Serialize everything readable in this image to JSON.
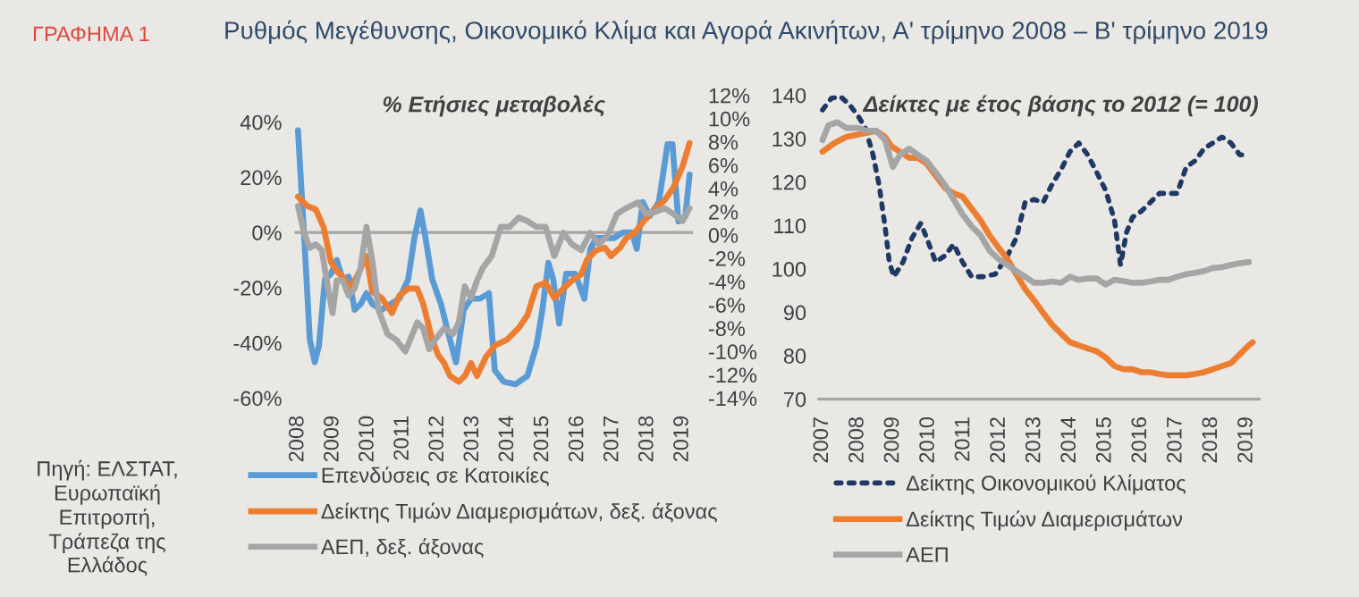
{
  "chart_data": [
    {
      "type": "line",
      "title": "% Ετήσιες μεταβολές",
      "annotations": [
        "ΓΡΑΦΗΜΑ 1",
        "Ρυθμός Μεγέθυνσης, Οικονομικό Κλίμα και Αγορά Ακινήτων, Α' τρίμηνο 2008 – Β' τρίμηνο 2019",
        "Πηγή: ΕΛΣΤΑΤ,\nΕυρωπαϊκή\nΕπιτροπή,\nΤράπεζα της\nΕλλάδος"
      ],
      "xlim": [
        2007.9,
        2019.3
      ],
      "xticks": [
        2008,
        2009,
        2010,
        2011,
        2012,
        2013,
        2014,
        2015,
        2016,
        2017,
        2018,
        2019
      ],
      "ylim": [
        -60,
        40
      ],
      "yticks": [
        {
          "value": -60,
          "label": "-60%"
        },
        {
          "value": -40,
          "label": "-40%"
        },
        {
          "value": -20,
          "label": "-20%"
        },
        {
          "value": 0,
          "label": "0%"
        },
        {
          "value": 20,
          "label": "20%"
        },
        {
          "value": 40,
          "label": "40%"
        }
      ],
      "y2lim": [
        -14,
        12
      ],
      "y2ticks": [
        {
          "value": -14,
          "label": "-14%"
        },
        {
          "value": -12,
          "label": "-12%"
        },
        {
          "value": -10,
          "label": "-10%"
        },
        {
          "value": -8,
          "label": "-8%"
        },
        {
          "value": -6,
          "label": "-6%"
        },
        {
          "value": -4,
          "label": "-4%"
        },
        {
          "value": -2,
          "label": "-2%"
        },
        {
          "value": 0,
          "label": "0%"
        },
        {
          "value": 2,
          "label": "2%"
        },
        {
          "value": 4,
          "label": "4%"
        },
        {
          "value": 6,
          "label": "6%"
        },
        {
          "value": 8,
          "label": "8%"
        },
        {
          "value": 10,
          "label": "10%"
        },
        {
          "value": 12,
          "label": "12%"
        }
      ],
      "ref_lines": [
        {
          "axis": "y",
          "value": 0,
          "color": "#a5a5a5"
        }
      ],
      "grid": false,
      "legend": "bottom",
      "series": [
        {
          "name": "Επενδύσεις σε Κατοικίες",
          "color": "#5b9bd5",
          "axis": "y",
          "x": [
            2008.0,
            2008.17,
            2008.34,
            2008.48,
            2008.6,
            2008.77,
            2008.94,
            2009.11,
            2009.28,
            2009.45,
            2009.62,
            2009.79,
            2009.96,
            2010.13,
            2010.39,
            2010.64,
            2010.9,
            2011.15,
            2011.33,
            2011.5,
            2011.62,
            2011.84,
            2012.09,
            2012.35,
            2012.52,
            2012.74,
            2012.95,
            2013.2,
            2013.46,
            2013.63,
            2013.88,
            2014.22,
            2014.56,
            2014.82,
            2014.99,
            2015.16,
            2015.3,
            2015.47,
            2015.67,
            2015.93,
            2016.19,
            2016.36,
            2016.53,
            2016.78,
            2017.04,
            2017.29,
            2017.55,
            2017.69,
            2017.86,
            2018.06,
            2018.32,
            2018.57,
            2018.71,
            2018.88,
            2019.08,
            2019.2
          ],
          "values": [
            37,
            0,
            -39,
            -47,
            -41,
            -17,
            -15,
            -10,
            -17,
            -16,
            -28,
            -26,
            -22,
            -26,
            -28,
            -26,
            -24,
            -17,
            -2,
            8,
            0,
            -17,
            -26,
            -39,
            -47,
            -28,
            -24,
            -24,
            -22,
            -50,
            -54,
            -55,
            -52,
            -41,
            -28,
            -11,
            -17,
            -33,
            -15,
            -15,
            -24,
            -6,
            -2,
            -2,
            -2,
            0,
            0,
            -6,
            11,
            6,
            11,
            32,
            32,
            4,
            6,
            21
          ]
        },
        {
          "name": "Δείκτης Τιμών Διαμερισμάτων, δεξ. άξονας",
          "color": "#ed7d31",
          "axis": "y2",
          "x": [
            2008.0,
            2008.26,
            2008.51,
            2008.73,
            2008.94,
            2009.11,
            2009.28,
            2009.5,
            2009.71,
            2009.96,
            2010.13,
            2010.39,
            2010.69,
            2010.9,
            2011.15,
            2011.41,
            2011.58,
            2011.84,
            2012.01,
            2012.18,
            2012.35,
            2012.6,
            2012.77,
            2012.95,
            2013.12,
            2013.37,
            2013.63,
            2013.97,
            2014.31,
            2014.56,
            2014.82,
            2015.08,
            2015.33,
            2015.59,
            2015.84,
            2016.1,
            2016.27,
            2016.53,
            2016.78,
            2016.95,
            2017.21,
            2017.38,
            2017.63,
            2017.89,
            2018.23,
            2018.49,
            2018.74,
            2019.0,
            2019.2
          ],
          "values": [
            3.3,
            2.5,
            2.2,
            0.7,
            -2.3,
            -3.1,
            -3.6,
            -4.6,
            -3.4,
            -1.8,
            -4.9,
            -5.4,
            -6.7,
            -5.2,
            -4.6,
            -4.6,
            -5.9,
            -9.0,
            -10.3,
            -11.0,
            -12.1,
            -12.6,
            -12.1,
            -11.0,
            -12.1,
            -10.5,
            -9.5,
            -9.0,
            -8.0,
            -6.9,
            -4.4,
            -4.1,
            -5.4,
            -4.6,
            -3.9,
            -3.4,
            -2.1,
            -1.3,
            -1.1,
            -1.8,
            -1.1,
            -0.3,
            0.2,
            1.2,
            2.3,
            3.0,
            4.1,
            5.9,
            7.9
          ]
        },
        {
          "name": "ΑΕΠ, δεξ. άξονας",
          "color": "#a5a5a5",
          "axis": "y2",
          "x": [
            2008.0,
            2008.17,
            2008.34,
            2008.51,
            2008.68,
            2008.85,
            2008.99,
            2009.11,
            2009.28,
            2009.45,
            2009.62,
            2009.79,
            2009.96,
            2010.13,
            2010.3,
            2010.56,
            2010.81,
            2011.07,
            2011.41,
            2011.58,
            2011.75,
            2011.92,
            2012.18,
            2012.43,
            2012.6,
            2012.77,
            2012.95,
            2013.12,
            2013.29,
            2013.54,
            2013.8,
            2014.05,
            2014.31,
            2014.56,
            2014.82,
            2015.08,
            2015.33,
            2015.59,
            2015.84,
            2016.1,
            2016.36,
            2016.61,
            2016.87,
            2017.12,
            2017.38,
            2017.72,
            2017.97,
            2018.23,
            2018.49,
            2018.74,
            2019.0,
            2019.2
          ],
          "values": [
            2.5,
            0.2,
            -1.1,
            -0.8,
            -1.3,
            -4.4,
            -6.7,
            -3.9,
            -3.9,
            -5.2,
            -4.6,
            -2.8,
            0.7,
            -2.3,
            -6.4,
            -8.5,
            -9.0,
            -10.0,
            -7.5,
            -8.0,
            -9.8,
            -9.0,
            -8.0,
            -8.5,
            -7.5,
            -4.4,
            -5.4,
            -3.9,
            -2.8,
            -1.8,
            0.7,
            0.7,
            1.5,
            1.2,
            0.7,
            0.7,
            -1.8,
            0.2,
            -0.8,
            -1.3,
            0.2,
            -0.8,
            0.0,
            1.8,
            2.3,
            2.8,
            1.8,
            2.0,
            2.3,
            1.8,
            1.2,
            2.3
          ]
        }
      ]
    },
    {
      "type": "line",
      "title": "Δείκτες με έτος βάσης το 2012 (= 100)",
      "xlim": [
        2006.9,
        2019.35
      ],
      "xticks": [
        2007,
        2008,
        2009,
        2010,
        2011,
        2012,
        2013,
        2014,
        2015,
        2016,
        2017,
        2018,
        2019
      ],
      "ylim": [
        70,
        140
      ],
      "yticks": [
        70,
        80,
        90,
        100,
        110,
        120,
        130,
        140
      ],
      "grid": false,
      "legend": "bottom",
      "series": [
        {
          "name": "Δείκτης Οικονομικού Κλίματος",
          "color": "#1f3864",
          "line_style": "dotted",
          "x": [
            2007.0,
            2007.25,
            2007.51,
            2007.76,
            2008.01,
            2008.21,
            2008.43,
            2008.6,
            2008.77,
            2008.89,
            2009.02,
            2009.28,
            2009.53,
            2009.78,
            2009.95,
            2010.2,
            2010.46,
            2010.71,
            2010.96,
            2011.22,
            2011.55,
            2011.89,
            2012.23,
            2012.48,
            2012.73,
            2012.99,
            2013.24,
            2013.49,
            2013.75,
            2014.0,
            2014.25,
            2014.5,
            2014.76,
            2015.01,
            2015.26,
            2015.43,
            2015.6,
            2015.77,
            2016.02,
            2016.27,
            2016.53,
            2016.78,
            2017.03,
            2017.29,
            2017.54,
            2017.79,
            2018.04,
            2018.3,
            2018.55,
            2018.8,
            2019.06
          ],
          "values": [
            136.6,
            139.3,
            139.7,
            137.9,
            135.2,
            132.5,
            126.3,
            119.4,
            109.8,
            101.6,
            98.2,
            101.6,
            107.1,
            110.5,
            107.1,
            101.6,
            103.0,
            105.7,
            101.6,
            98.2,
            98.2,
            98.8,
            103.0,
            107.1,
            115.3,
            116.0,
            115.3,
            119.4,
            122.9,
            127.0,
            129.0,
            126.3,
            122.2,
            118.1,
            111.2,
            100.9,
            108.4,
            111.9,
            113.3,
            115.3,
            117.4,
            117.4,
            117.4,
            123.5,
            124.9,
            127.7,
            129.0,
            130.4,
            129.0,
            126.3,
            126.3
          ]
        },
        {
          "name": "Δείκτης Τιμών Διαμερισμάτων",
          "color": "#ed7d31",
          "line_style": "solid",
          "x": [
            2007.0,
            2007.34,
            2007.67,
            2008.1,
            2008.52,
            2008.77,
            2008.94,
            2009.19,
            2009.45,
            2009.7,
            2009.95,
            2010.2,
            2010.46,
            2010.71,
            2010.96,
            2011.22,
            2011.47,
            2011.72,
            2011.97,
            2012.23,
            2012.48,
            2012.73,
            2012.99,
            2013.24,
            2013.49,
            2013.75,
            2014.0,
            2014.25,
            2014.5,
            2014.76,
            2015.01,
            2015.26,
            2015.52,
            2015.77,
            2016.02,
            2016.27,
            2016.53,
            2016.78,
            2017.03,
            2017.29,
            2017.54,
            2017.79,
            2018.04,
            2018.3,
            2018.55,
            2018.8,
            2019.06,
            2019.17
          ],
          "values": [
            127.0,
            129.0,
            130.4,
            131.1,
            131.8,
            130.4,
            128.3,
            127.0,
            125.6,
            125.6,
            124.2,
            121.5,
            118.7,
            117.4,
            116.7,
            113.9,
            111.2,
            107.8,
            105.0,
            102.3,
            98.8,
            95.4,
            92.7,
            89.9,
            87.2,
            85.1,
            83.1,
            82.4,
            81.7,
            81.0,
            79.6,
            77.6,
            76.9,
            76.9,
            76.2,
            76.2,
            75.8,
            75.5,
            75.5,
            75.5,
            75.8,
            76.2,
            76.9,
            77.6,
            78.3,
            80.3,
            82.4,
            83.1
          ]
        },
        {
          "name": "ΑΕΠ",
          "color": "#a5a5a5",
          "line_style": "solid",
          "x": [
            2007.0,
            2007.17,
            2007.42,
            2007.67,
            2008.01,
            2008.26,
            2008.52,
            2008.77,
            2008.99,
            2009.19,
            2009.45,
            2009.7,
            2009.95,
            2010.2,
            2010.46,
            2010.71,
            2010.96,
            2011.22,
            2011.47,
            2011.72,
            2011.97,
            2012.23,
            2012.48,
            2012.73,
            2012.99,
            2013.24,
            2013.49,
            2013.75,
            2014.0,
            2014.25,
            2014.5,
            2014.76,
            2015.01,
            2015.26,
            2015.52,
            2015.77,
            2016.02,
            2016.27,
            2016.53,
            2016.78,
            2017.03,
            2017.29,
            2017.54,
            2017.79,
            2018.04,
            2018.3,
            2018.55,
            2018.8,
            2019.06
          ],
          "values": [
            129.7,
            133.1,
            133.8,
            132.5,
            132.5,
            131.8,
            131.8,
            129.7,
            123.5,
            126.3,
            127.7,
            126.3,
            124.9,
            122.2,
            119.4,
            116.0,
            112.6,
            109.8,
            107.8,
            104.3,
            102.3,
            100.9,
            99.5,
            98.2,
            96.8,
            96.8,
            97.1,
            96.8,
            98.2,
            97.5,
            97.8,
            97.8,
            96.4,
            97.5,
            97.2,
            96.8,
            96.8,
            97.1,
            97.5,
            97.5,
            98.2,
            98.8,
            99.1,
            99.5,
            100.2,
            100.4,
            100.9,
            101.3,
            101.6
          ]
        }
      ]
    }
  ]
}
